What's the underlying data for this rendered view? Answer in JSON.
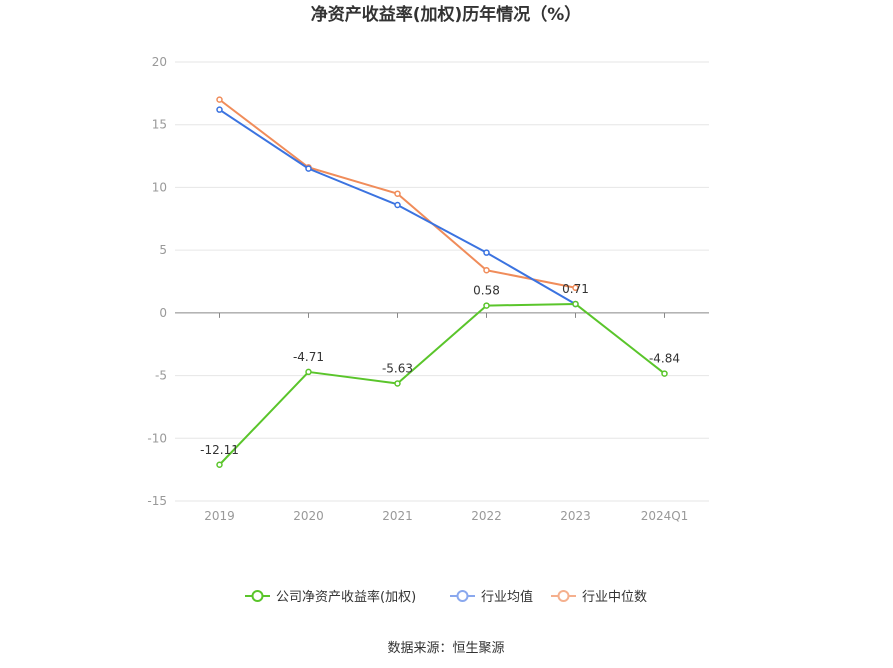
{
  "chart_data": {
    "type": "line",
    "title": "净资产收益率(加权)历年情况（%）",
    "categories": [
      "2019",
      "2020",
      "2021",
      "2022",
      "2023",
      "2024Q1"
    ],
    "ylim": [
      -15,
      20
    ],
    "yticks": [
      20,
      15,
      10,
      5,
      0,
      -5,
      -10,
      -15
    ],
    "grid": true,
    "legend_position": "bottom",
    "series": [
      {
        "name": "公司净资产收益率(加权)",
        "color": "#5ac52b",
        "values": [
          -12.11,
          -4.71,
          -5.63,
          0.58,
          0.71,
          -4.84
        ],
        "labels": [
          "-12.11",
          "-4.71",
          "-5.63",
          "0.58",
          "0.71",
          "-4.84"
        ]
      },
      {
        "name": "行业均值",
        "color": "#3b73e0",
        "values": [
          16.2,
          11.5,
          8.6,
          4.8,
          0.7,
          null
        ]
      },
      {
        "name": "行业中位数",
        "color": "#f08c5a",
        "values": [
          17.0,
          11.6,
          9.5,
          3.4,
          2.0,
          null
        ]
      }
    ]
  },
  "legend": [
    {
      "label": "公司净资产收益率(加权)",
      "color": "#5ac52b"
    },
    {
      "label": "行业均值",
      "color": "#8aa8ee"
    },
    {
      "label": "行业中位数",
      "color": "#f5b08e"
    }
  ],
  "source": "数据来源：恒生聚源"
}
